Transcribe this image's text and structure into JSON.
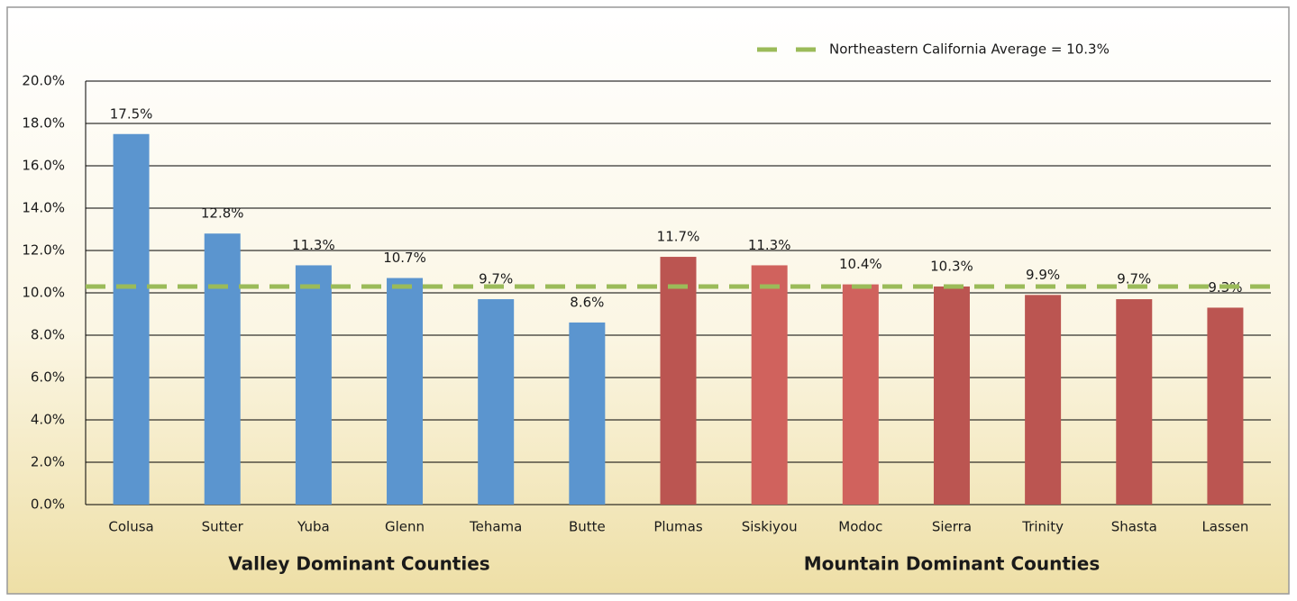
{
  "chart_data": {
    "type": "bar",
    "categories": [
      "Colusa",
      "Sutter",
      "Yuba",
      "Glenn",
      "Tehama",
      "Butte",
      "Plumas",
      "Siskiyou",
      "Modoc",
      "Sierra",
      "Trinity",
      "Shasta",
      "Lassen"
    ],
    "values": [
      17.5,
      12.8,
      11.3,
      10.7,
      9.7,
      8.6,
      11.7,
      11.3,
      10.4,
      10.3,
      9.9,
      9.7,
      9.3
    ],
    "value_labels": [
      "17.5%",
      "12.8%",
      "11.3%",
      "10.7%",
      "9.7%",
      "8.6%",
      "11.7%",
      "11.3%",
      "10.4%",
      "10.3%",
      "9.9%",
      "9.7%",
      "9.3%"
    ],
    "colors": [
      "#5b95cf",
      "#5b95cf",
      "#5b95cf",
      "#5b95cf",
      "#5b95cf",
      "#5b95cf",
      "#bb5551",
      "#d0625d",
      "#d0625d",
      "#bb5551",
      "#bb5551",
      "#bb5551",
      "#bb5551"
    ],
    "ylim": [
      0,
      20
    ],
    "yticks": [
      {
        "value": 0,
        "label": "0.0%"
      },
      {
        "value": 2,
        "label": "2.0%"
      },
      {
        "value": 4,
        "label": "4.0%"
      },
      {
        "value": 6,
        "label": "6.0%"
      },
      {
        "value": 8,
        "label": "8.0%"
      },
      {
        "value": 10,
        "label": "10.0%"
      },
      {
        "value": 12,
        "label": "12.0%"
      },
      {
        "value": 14,
        "label": "14.0%"
      },
      {
        "value": 16,
        "label": "16.0%"
      },
      {
        "value": 18,
        "label": "18.0%"
      },
      {
        "value": 20,
        "label": "20.0%"
      }
    ],
    "grid": true,
    "reference_line": {
      "value": 10.3,
      "label": "Northeastern California Average = 10.3%",
      "color": "#9bbb59"
    },
    "group_labels": [
      "Valley Dominant Counties",
      "Mountain Dominant Counties"
    ]
  }
}
